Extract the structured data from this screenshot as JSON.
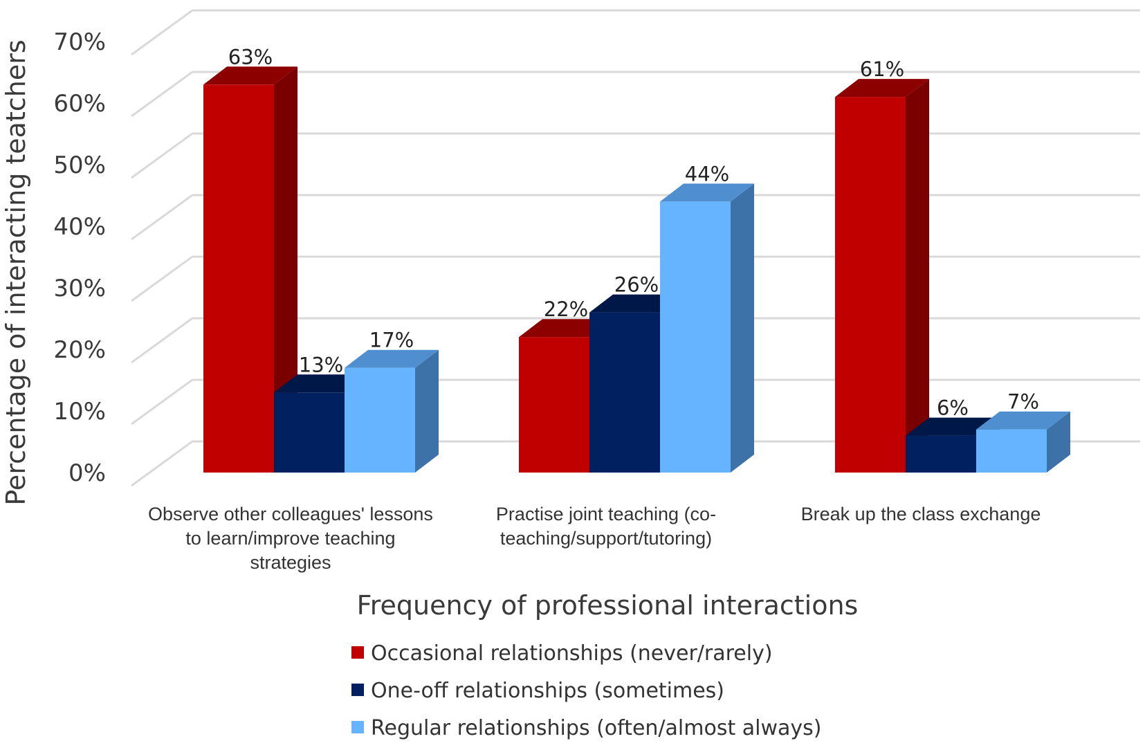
{
  "chart_data": {
    "type": "bar",
    "style": "3d-clustered-column",
    "categories": [
      "Observe other colleagues' lessons to learn/improve teaching strategies",
      "Practise joint teaching (co-teaching/support/tutoring)",
      "Break up the class exchange"
    ],
    "category_lines": [
      [
        "Observe other colleagues' lessons",
        "to learn/improve teaching",
        "strategies"
      ],
      [
        "Practise joint teaching (co-",
        "teaching/support/tutoring)"
      ],
      [
        "Break up the class exchange"
      ]
    ],
    "series": [
      {
        "name": "Occasional relationships (never/rarely)",
        "values": [
          63,
          22,
          61
        ],
        "labels": [
          "63%",
          "22%",
          "61%"
        ],
        "color": "#c00000",
        "side_color": "#7a0000",
        "top_color": "#8c0000"
      },
      {
        "name": "One-off relationships (sometimes)",
        "values": [
          13,
          26,
          6
        ],
        "labels": [
          "13%",
          "26%",
          "6%"
        ],
        "color": "#002060",
        "side_color": "#001339",
        "top_color": "#001848"
      },
      {
        "name": "Regular relationships (often/almost always)",
        "values": [
          17,
          44,
          7
        ],
        "labels": [
          "17%",
          "44%",
          "7%"
        ],
        "color": "#66b3ff",
        "side_color": "#3d72a8",
        "top_color": "#4f8fd0"
      }
    ],
    "xlabel": "Frequency of professional interactions",
    "ylabel": "Percentage of interacting teatchers",
    "ylim": [
      0,
      70
    ],
    "yticks": [
      "0%",
      "10%",
      "20%",
      "30%",
      "40%",
      "50%",
      "60%",
      "70%"
    ],
    "grid": true,
    "gridline_color": "#d9d9d9",
    "legend_position": "bottom"
  }
}
